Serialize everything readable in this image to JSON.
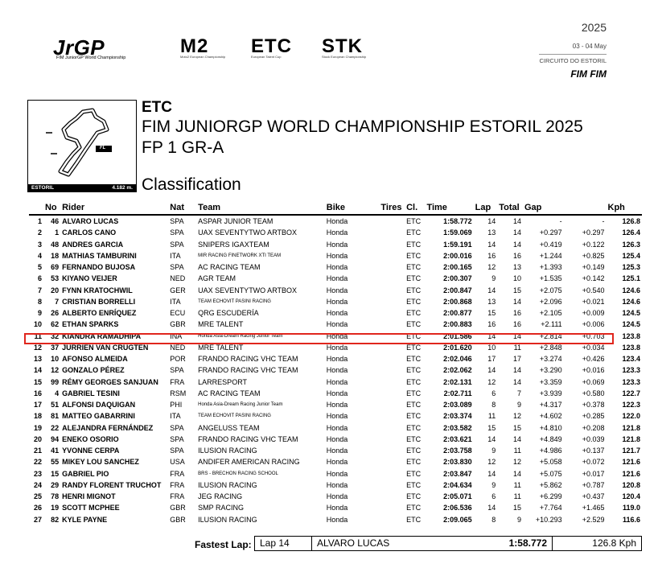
{
  "header": {
    "logos": [
      {
        "name": "JrGP",
        "subtitle": "FIM JuniorGP World Championship"
      },
      {
        "name": "M2",
        "subtitle": "Moto2 European Championship"
      },
      {
        "name": "ETC",
        "subtitle": "European Talent Cup"
      },
      {
        "name": "STK",
        "subtitle": "Stock European Championship"
      }
    ],
    "year": "2025",
    "dates": "03 - 04 May",
    "circuit": "CIRCUITO DO ESTORIL",
    "fim_logos": "FIM FIM"
  },
  "track": {
    "name": "ESTORIL",
    "length": "4.182 m.",
    "fl_marker": "FL"
  },
  "titles": {
    "series": "ETC",
    "championship": "FIM JUNIORGP WORLD CHAMPIONSHIP ESTORIL 2025",
    "session": "FP 1 GR-A",
    "classification": "Classification"
  },
  "columns": [
    "No",
    "Rider",
    "Nat",
    "Team",
    "Bike",
    "Tires",
    "Cl.",
    "Time",
    "Lap",
    "Total",
    "Gap",
    "Kph"
  ],
  "rows": [
    {
      "pos": "1",
      "no": "46",
      "rider": "ALVARO LUCAS",
      "nat": "SPA",
      "team": "ASPAR JUNIOR TEAM",
      "bike": "Honda",
      "cl": "ETC",
      "time": "1:58.772",
      "lap": "14",
      "total": "14",
      "gap1": "-",
      "gap2": "-",
      "kph": "126.8"
    },
    {
      "pos": "2",
      "no": "1",
      "rider": "CARLOS CANO",
      "nat": "SPA",
      "team": "UAX SEVENTYTWO ARTBOX",
      "bike": "Honda",
      "cl": "ETC",
      "time": "1:59.069",
      "lap": "13",
      "total": "14",
      "gap1": "+0.297",
      "gap2": "+0.297",
      "kph": "126.4"
    },
    {
      "pos": "3",
      "no": "48",
      "rider": "ANDRES GARCIA",
      "nat": "SPA",
      "team": "SNIPERS IGAXTEAM",
      "bike": "Honda",
      "cl": "ETC",
      "time": "1:59.191",
      "lap": "14",
      "total": "14",
      "gap1": "+0.419",
      "gap2": "+0.122",
      "kph": "126.3"
    },
    {
      "pos": "4",
      "no": "18",
      "rider": "MATHIAS TAMBURINI",
      "nat": "ITA",
      "team": "MIR RACING FINETWORK XTI TEAM",
      "small": true,
      "bike": "Honda",
      "cl": "ETC",
      "time": "2:00.016",
      "lap": "16",
      "total": "16",
      "gap1": "+1.244",
      "gap2": "+0.825",
      "kph": "125.4"
    },
    {
      "pos": "5",
      "no": "69",
      "rider": "FERNANDO BUJOSA",
      "nat": "SPA",
      "team": "AC RACING TEAM",
      "bike": "Honda",
      "cl": "ETC",
      "time": "2:00.165",
      "lap": "12",
      "total": "13",
      "gap1": "+1.393",
      "gap2": "+0.149",
      "kph": "125.3"
    },
    {
      "pos": "6",
      "no": "53",
      "rider": "KIYANO VEIJER",
      "nat": "NED",
      "team": "AGR TEAM",
      "bike": "Honda",
      "cl": "ETC",
      "time": "2:00.307",
      "lap": "9",
      "total": "10",
      "gap1": "+1.535",
      "gap2": "+0.142",
      "kph": "125.1"
    },
    {
      "pos": "7",
      "no": "20",
      "rider": "FYNN KRATOCHWIL",
      "nat": "GER",
      "team": "UAX SEVENTYTWO ARTBOX",
      "bike": "Honda",
      "cl": "ETC",
      "time": "2:00.847",
      "lap": "14",
      "total": "15",
      "gap1": "+2.075",
      "gap2": "+0.540",
      "kph": "124.6"
    },
    {
      "pos": "8",
      "no": "7",
      "rider": "CRISTIAN BORRELLI",
      "nat": "ITA",
      "team": "TEAM ECHOVIT PASINI RACING",
      "small": true,
      "bike": "Honda",
      "cl": "ETC",
      "time": "2:00.868",
      "lap": "13",
      "total": "14",
      "gap1": "+2.096",
      "gap2": "+0.021",
      "kph": "124.6"
    },
    {
      "pos": "9",
      "no": "26",
      "rider": "ALBERTO ENRÍQUEZ",
      "nat": "ECU",
      "team": "QRG ESCUDERÍA",
      "bike": "Honda",
      "cl": "ETC",
      "time": "2:00.877",
      "lap": "15",
      "total": "16",
      "gap1": "+2.105",
      "gap2": "+0.009",
      "kph": "124.5"
    },
    {
      "pos": "10",
      "no": "62",
      "rider": "ETHAN SPARKS",
      "nat": "GBR",
      "team": "MRE TALENT",
      "bike": "Honda",
      "cl": "ETC",
      "time": "2:00.883",
      "lap": "16",
      "total": "16",
      "gap1": "+2.111",
      "gap2": "+0.006",
      "kph": "124.5"
    },
    {
      "pos": "11",
      "no": "32",
      "rider": "KIANDRA RAMADHIPA",
      "nat": "INA",
      "team": "Honda Asia-Dream Racing Junior Team",
      "small": true,
      "bike": "Honda",
      "cl": "ETC",
      "time": "2:01.586",
      "lap": "14",
      "total": "14",
      "gap1": "+2.814",
      "gap2": "+0.703",
      "kph": "123.8"
    },
    {
      "pos": "12",
      "no": "37",
      "rider": "JURRIEN VAN CRUGTEN",
      "nat": "NED",
      "team": "MRE TALENT",
      "bike": "Honda",
      "cl": "ETC",
      "time": "2:01.620",
      "lap": "10",
      "total": "11",
      "gap1": "+2.848",
      "gap2": "+0.034",
      "kph": "123.8"
    },
    {
      "pos": "13",
      "no": "10",
      "rider": "AFONSO ALMEIDA",
      "nat": "POR",
      "team": "FRANDO RACING VHC TEAM",
      "bike": "Honda",
      "cl": "ETC",
      "time": "2:02.046",
      "lap": "17",
      "total": "17",
      "gap1": "+3.274",
      "gap2": "+0.426",
      "kph": "123.4"
    },
    {
      "pos": "14",
      "no": "12",
      "rider": "GONZALO PÉREZ",
      "nat": "SPA",
      "team": "FRANDO RACING VHC TEAM",
      "bike": "Honda",
      "cl": "ETC",
      "time": "2:02.062",
      "lap": "14",
      "total": "14",
      "gap1": "+3.290",
      "gap2": "+0.016",
      "kph": "123.3"
    },
    {
      "pos": "15",
      "no": "99",
      "rider": "RÉMY GEORGES SANJUAN",
      "nat": "FRA",
      "team": "LARRESPORT",
      "bike": "Honda",
      "cl": "ETC",
      "time": "2:02.131",
      "lap": "12",
      "total": "14",
      "gap1": "+3.359",
      "gap2": "+0.069",
      "kph": "123.3"
    },
    {
      "pos": "16",
      "no": "4",
      "rider": "GABRIEL TESINI",
      "nat": "RSM",
      "team": "AC RACING TEAM",
      "bike": "Honda",
      "cl": "ETC",
      "time": "2:02.711",
      "lap": "6",
      "total": "7",
      "gap1": "+3.939",
      "gap2": "+0.580",
      "kph": "122.7"
    },
    {
      "pos": "17",
      "no": "51",
      "rider": "ALFONSI DAQUIGAN",
      "nat": "PHI",
      "team": "Honda Asia-Dream Racing Junior Team",
      "small": true,
      "bike": "Honda",
      "cl": "ETC",
      "time": "2:03.089",
      "lap": "8",
      "total": "9",
      "gap1": "+4.317",
      "gap2": "+0.378",
      "kph": "122.3"
    },
    {
      "pos": "18",
      "no": "81",
      "rider": "MATTEO GABARRINI",
      "nat": "ITA",
      "team": "TEAM ECHOVIT PASINI RACING",
      "small": true,
      "bike": "Honda",
      "cl": "ETC",
      "time": "2:03.374",
      "lap": "11",
      "total": "12",
      "gap1": "+4.602",
      "gap2": "+0.285",
      "kph": "122.0"
    },
    {
      "pos": "19",
      "no": "22",
      "rider": "ALEJANDRA FERNÁNDEZ",
      "nat": "SPA",
      "team": "ANGELUSS TEAM",
      "bike": "Honda",
      "cl": "ETC",
      "time": "2:03.582",
      "lap": "15",
      "total": "15",
      "gap1": "+4.810",
      "gap2": "+0.208",
      "kph": "121.8"
    },
    {
      "pos": "20",
      "no": "94",
      "rider": "ENEKO OSORIO",
      "nat": "SPA",
      "team": "FRANDO RACING VHC TEAM",
      "bike": "Honda",
      "cl": "ETC",
      "time": "2:03.621",
      "lap": "14",
      "total": "14",
      "gap1": "+4.849",
      "gap2": "+0.039",
      "kph": "121.8"
    },
    {
      "pos": "21",
      "no": "41",
      "rider": "YVONNE CERPA",
      "nat": "SPA",
      "team": "ILUSION RACING",
      "bike": "Honda",
      "cl": "ETC",
      "time": "2:03.758",
      "lap": "9",
      "total": "11",
      "gap1": "+4.986",
      "gap2": "+0.137",
      "kph": "121.7"
    },
    {
      "pos": "22",
      "no": "55",
      "rider": "MIKEY LOU SANCHEZ",
      "nat": "USA",
      "team": "ANDIFER AMERICAN RACING",
      "bike": "Honda",
      "cl": "ETC",
      "time": "2:03.830",
      "lap": "12",
      "total": "12",
      "gap1": "+5.058",
      "gap2": "+0.072",
      "kph": "121.6"
    },
    {
      "pos": "23",
      "no": "15",
      "rider": "GABRIEL PIO",
      "nat": "FRA",
      "team": "BRS - BRECHON RACING SCHOOL",
      "small": true,
      "bike": "Honda",
      "cl": "ETC",
      "time": "2:03.847",
      "lap": "14",
      "total": "14",
      "gap1": "+5.075",
      "gap2": "+0.017",
      "kph": "121.6"
    },
    {
      "pos": "24",
      "no": "29",
      "rider": "RANDY FLORENT TRUCHOT",
      "nat": "FRA",
      "team": "ILUSION RACING",
      "bike": "Honda",
      "cl": "ETC",
      "time": "2:04.634",
      "lap": "9",
      "total": "11",
      "gap1": "+5.862",
      "gap2": "+0.787",
      "kph": "120.8"
    },
    {
      "pos": "25",
      "no": "78",
      "rider": "HENRI MIGNOT",
      "nat": "FRA",
      "team": "JEG RACING",
      "bike": "Honda",
      "cl": "ETC",
      "time": "2:05.071",
      "lap": "6",
      "total": "11",
      "gap1": "+6.299",
      "gap2": "+0.437",
      "kph": "120.4"
    },
    {
      "pos": "26",
      "no": "19",
      "rider": "SCOTT MCPHEE",
      "nat": "GBR",
      "team": "SMP RACING",
      "bike": "Honda",
      "cl": "ETC",
      "time": "2:06.536",
      "lap": "14",
      "total": "15",
      "gap1": "+7.764",
      "gap2": "+1.465",
      "kph": "119.0"
    },
    {
      "pos": "27",
      "no": "82",
      "rider": "KYLE PAYNE",
      "nat": "GBR",
      "team": "ILUSION RACING",
      "bike": "Honda",
      "cl": "ETC",
      "time": "2:09.065",
      "lap": "8",
      "total": "9",
      "gap1": "+10.293",
      "gap2": "+2.529",
      "kph": "116.6"
    }
  ],
  "fastest_lap": {
    "label": "Fastest Lap:",
    "lap": "Lap 14",
    "rider": "ALVARO LUCAS",
    "time": "1:58.772",
    "speed": "126.8 Kph"
  },
  "colors": {
    "highlight": "#e0261d",
    "logo_accent": "#8ab33e"
  }
}
